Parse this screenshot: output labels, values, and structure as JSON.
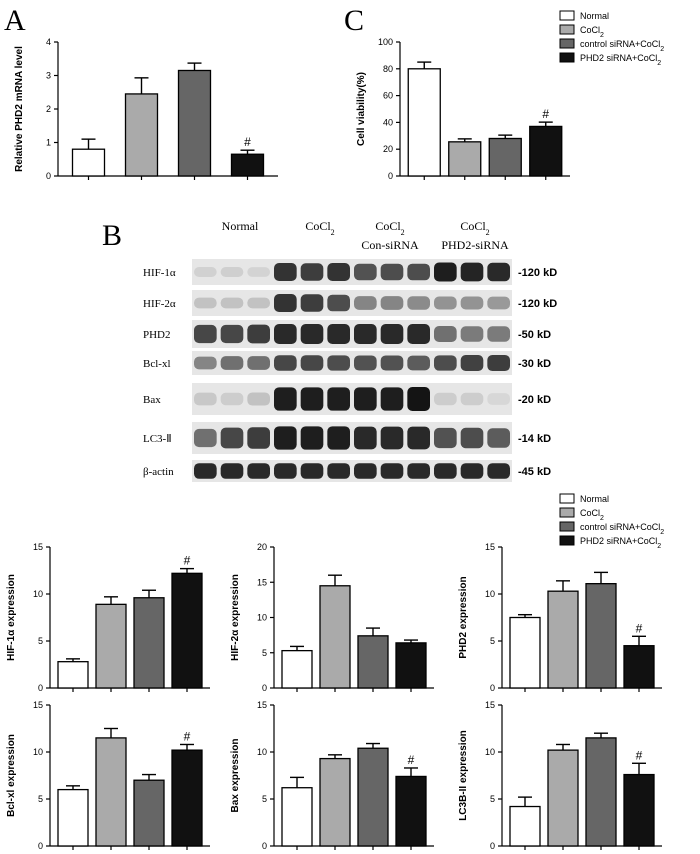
{
  "panels": {
    "a": "A",
    "b": "B",
    "c": "C"
  },
  "legend_top": {
    "items": [
      {
        "label": "Normal",
        "sub": "",
        "tail": "",
        "color": "#ffffff"
      },
      {
        "label": "CoCl",
        "sub": "2",
        "tail": "",
        "color": "#aaaaaa"
      },
      {
        "label": "control siRNA+CoCl",
        "sub": "2",
        "tail": "",
        "color": "#666666"
      },
      {
        "label": "PHD2 siRNA+CoCl",
        "sub": "2",
        "tail": "",
        "color": "#111111"
      }
    ]
  },
  "legend_bottom": {
    "items": [
      {
        "label": "Normal",
        "sub": "",
        "tail": "",
        "color": "#ffffff"
      },
      {
        "label": "CoCl",
        "sub": "2",
        "tail": "",
        "color": "#aaaaaa"
      },
      {
        "label": "control siRNA+CoCl",
        "sub": "2",
        "tail": "",
        "color": "#666666"
      },
      {
        "label": "PHD2 siRNA+CoCl",
        "sub": "2",
        "tail": "",
        "color": "#111111"
      }
    ]
  },
  "western_blot": {
    "groups": [
      {
        "line1": "Normal",
        "line1_sub": "",
        "line2": ""
      },
      {
        "line1": "CoCl",
        "line1_sub": "2",
        "line2": ""
      },
      {
        "line1": "CoCl",
        "line1_sub": "2",
        "line2": "Con-siRNA"
      },
      {
        "line1": "CoCl",
        "line1_sub": "2",
        "line2": "PHD2-siRNA"
      }
    ],
    "rows": [
      {
        "name": "HIF-1α",
        "kd": "-120 kD",
        "intensity": [
          0.08,
          0.09,
          0.07,
          0.85,
          0.8,
          0.85,
          0.7,
          0.72,
          0.72,
          0.95,
          0.92,
          0.9
        ]
      },
      {
        "name": "HIF-2α",
        "kd": "-120 kD",
        "intensity": [
          0.15,
          0.15,
          0.15,
          0.85,
          0.8,
          0.72,
          0.45,
          0.45,
          0.42,
          0.38,
          0.38,
          0.35
        ]
      },
      {
        "name": "PHD2",
        "kd": "-50 kD",
        "intensity": [
          0.75,
          0.75,
          0.8,
          0.9,
          0.9,
          0.9,
          0.9,
          0.9,
          0.9,
          0.55,
          0.5,
          0.5
        ]
      },
      {
        "name": "Bcl-xl",
        "kd": "-30 kD",
        "intensity": [
          0.45,
          0.55,
          0.55,
          0.75,
          0.75,
          0.72,
          0.7,
          0.7,
          0.65,
          0.72,
          0.78,
          0.8
        ]
      },
      {
        "name": "Bax",
        "kd": "-20 kD",
        "intensity": [
          0.12,
          0.1,
          0.15,
          0.95,
          0.95,
          0.95,
          0.95,
          0.95,
          1.0,
          0.1,
          0.1,
          0.05
        ]
      },
      {
        "name": "LC3-Ⅱ",
        "kd": "-14 kD",
        "intensity": [
          0.55,
          0.75,
          0.8,
          0.95,
          0.95,
          0.95,
          0.9,
          0.9,
          0.9,
          0.7,
          0.72,
          0.65
        ]
      },
      {
        "name": "β-actin",
        "kd": "-45 kD",
        "intensity": [
          0.9,
          0.9,
          0.9,
          0.9,
          0.9,
          0.9,
          0.9,
          0.9,
          0.9,
          0.9,
          0.9,
          0.9
        ]
      }
    ]
  },
  "chart_data": [
    {
      "id": "A",
      "type": "bar",
      "ylabel": "Relative PHD2 mRNA level",
      "ylim": [
        0,
        4
      ],
      "yticks": [
        0,
        1,
        2,
        3,
        4
      ],
      "values": [
        0.8,
        2.45,
        3.15,
        0.65
      ],
      "errors": [
        0.3,
        0.48,
        0.22,
        0.12
      ],
      "sig_index": 3,
      "sig": "#"
    },
    {
      "id": "C",
      "type": "bar",
      "ylabel": "Cell viability(%)",
      "ylim": [
        0,
        100
      ],
      "yticks": [
        0,
        20,
        40,
        60,
        80,
        100
      ],
      "values": [
        80,
        25.5,
        28,
        37
      ],
      "errors": [
        5,
        2.2,
        2.5,
        3.2
      ],
      "sig_index": 3,
      "sig": "#"
    },
    {
      "id": "HIF1a",
      "type": "bar",
      "ylabel": "HIF-1α  expression",
      "ylim": [
        0,
        15
      ],
      "yticks": [
        0,
        5,
        10,
        15
      ],
      "values": [
        2.8,
        8.9,
        9.6,
        12.2
      ],
      "errors": [
        0.3,
        0.8,
        0.8,
        0.5
      ],
      "sig_index": 3,
      "sig": "#"
    },
    {
      "id": "HIF2a",
      "type": "bar",
      "ylabel": "HIF-2α  expression",
      "ylim": [
        0,
        20
      ],
      "yticks": [
        0,
        5,
        10,
        15,
        20
      ],
      "values": [
        5.3,
        14.5,
        7.4,
        6.4
      ],
      "errors": [
        0.6,
        1.5,
        1.1,
        0.4
      ],
      "sig_index": -1,
      "sig": ""
    },
    {
      "id": "PHD2",
      "type": "bar",
      "ylabel": "PHD2 expression",
      "ylim": [
        0,
        15
      ],
      "yticks": [
        0,
        5,
        10,
        15
      ],
      "values": [
        7.5,
        10.3,
        11.1,
        4.5
      ],
      "errors": [
        0.3,
        1.1,
        1.2,
        1.0
      ],
      "sig_index": 3,
      "sig": "#"
    },
    {
      "id": "Bclxl",
      "type": "bar",
      "ylabel": "Bcl-xl expression",
      "ylim": [
        0,
        15
      ],
      "yticks": [
        0,
        5,
        10,
        15
      ],
      "values": [
        6.0,
        11.5,
        7.0,
        10.2
      ],
      "errors": [
        0.4,
        1.0,
        0.6,
        0.6
      ],
      "sig_index": 3,
      "sig": "#"
    },
    {
      "id": "Bax",
      "type": "bar",
      "ylabel": "Bax expression",
      "ylim": [
        0,
        15
      ],
      "yticks": [
        0,
        5,
        10,
        15
      ],
      "values": [
        6.2,
        9.3,
        10.4,
        7.4
      ],
      "errors": [
        1.1,
        0.4,
        0.5,
        0.9
      ],
      "sig_index": 3,
      "sig": "#"
    },
    {
      "id": "LC3BII",
      "type": "bar",
      "ylabel": "LC3B-II  expression",
      "ylim": [
        0,
        15
      ],
      "yticks": [
        0,
        5,
        10,
        15
      ],
      "values": [
        4.2,
        10.2,
        11.5,
        7.6
      ],
      "errors": [
        1.0,
        0.6,
        0.5,
        1.2
      ],
      "sig_index": 3,
      "sig": "#"
    }
  ]
}
